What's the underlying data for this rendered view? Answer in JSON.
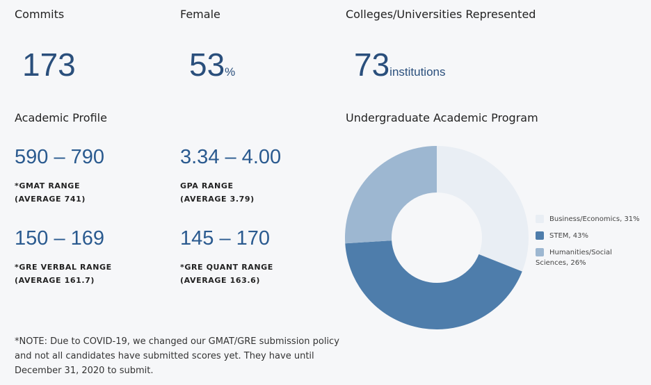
{
  "stats": {
    "commits": {
      "header": "Commits",
      "value": "173"
    },
    "female": {
      "header": "Female",
      "value": "53",
      "suffix": "%"
    },
    "colleges": {
      "header": "Colleges/Universities Represented",
      "value": "73",
      "suffix": "institutions"
    }
  },
  "academic_profile": {
    "header": "Academic Profile",
    "gmat": {
      "range": "590 – 790",
      "label1": "*GMAT RANGE",
      "label2": "(AVERAGE 741)"
    },
    "gpa": {
      "range": "3.34 – 4.00",
      "label1": "GPA RANGE",
      "label2": "(AVERAGE 3.79)"
    },
    "gre_verbal": {
      "range": "150 – 169",
      "label1": "*GRE VERBAL RANGE",
      "label2": "(AVERAGE 161.7)"
    },
    "gre_quant": {
      "range": "145 – 170",
      "label1": "*GRE QUANT RANGE",
      "label2": "(AVERAGE 163.6)"
    }
  },
  "note": {
    "line1": "*NOTE: Due to COVID-19, we changed our GMAT/GRE submission policy",
    "line2": "and not all candidates have submitted scores yet. They have until",
    "line3": "December 31, 2020 to submit."
  },
  "chart_data": {
    "type": "pie",
    "title": "Undergraduate Academic Program",
    "categories": [
      "Business/Economics",
      "STEM",
      "Humanities/Social Sciences"
    ],
    "values": [
      31,
      43,
      26
    ],
    "legend_labels": [
      "Business/Economics, 31%",
      "STEM, 43%",
      "Humanities/Social Sciences, 26%"
    ],
    "colors": [
      "#e9eef4",
      "#4e7dab",
      "#9db7d1"
    ],
    "donut": true,
    "legend_position": "right"
  }
}
